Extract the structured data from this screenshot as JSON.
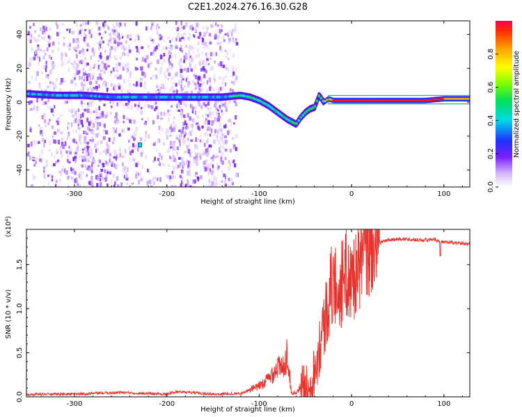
{
  "title": "C2E1.2024.276.16.30.G28",
  "chart_data": [
    {
      "type": "heatmap",
      "xlabel": "Height of straight line (km)",
      "ylabel": "Frequency (Hz)",
      "xlim": [
        -352,
        128
      ],
      "ylim": [
        -50,
        48
      ],
      "xticks": [
        -300,
        -200,
        -100,
        0,
        100
      ],
      "yticks": [
        -40,
        -20,
        0,
        20,
        40
      ],
      "colorbar": {
        "label": "Normalized spectral amplitude",
        "range": [
          0,
          1
        ],
        "ticks": [
          "0.0",
          "0.2",
          "0.4",
          "0.6",
          "0.8"
        ]
      },
      "ridge": {
        "x": [
          -352,
          -320,
          -290,
          -260,
          -240,
          -220,
          -200,
          -180,
          -160,
          -140,
          -120,
          -110,
          -100,
          -90,
          -80,
          -70,
          -60,
          -55,
          -50,
          -45,
          -40,
          -35,
          -30,
          -25,
          -20,
          -10,
          0,
          20,
          50,
          80,
          100,
          128
        ],
        "freq": [
          5,
          4,
          4,
          3,
          3,
          3,
          3,
          3,
          3,
          3,
          4,
          3,
          1,
          -2,
          -6,
          -10,
          -13,
          -9,
          -6,
          -4,
          -3,
          4,
          0,
          2,
          1,
          1,
          1,
          1,
          1,
          1,
          2,
          2
        ]
      }
    },
    {
      "type": "line",
      "xlabel": "Height of straight line (km)",
      "ylabel": "SNR (10 * v/v)",
      "multiplier": "(x10⁴)",
      "xlim": [
        -352,
        128
      ],
      "ylim": [
        0,
        1.9
      ],
      "xticks": [
        -300,
        -200,
        -100,
        0,
        100
      ],
      "yticks": [
        "0.0",
        "0.5",
        "1.0",
        "1.5"
      ],
      "series": [
        {
          "x": [
            -352,
            -300,
            -250,
            -200,
            -190,
            -150,
            -120,
            -110,
            -100,
            -90,
            -80,
            -75,
            -70,
            -65,
            -60,
            -55,
            -50,
            -45,
            -40,
            -35,
            -30,
            -25,
            -20,
            -15,
            -10,
            -5,
            0,
            5,
            10,
            20,
            30,
            40,
            50,
            60,
            70,
            80,
            90,
            95,
            100,
            110,
            120,
            128
          ],
          "y": [
            0.03,
            0.03,
            0.05,
            0.03,
            0.06,
            0.03,
            0.04,
            0.08,
            0.12,
            0.2,
            0.35,
            0.3,
            0.5,
            0.05,
            0.04,
            0.12,
            0.08,
            0.15,
            0.3,
            0.6,
            0.8,
            1.1,
            1.3,
            1.2,
            1.3,
            1.4,
            1.3,
            1.45,
            1.55,
            1.68,
            1.75,
            1.78,
            1.79,
            1.79,
            1.78,
            1.78,
            1.79,
            1.76,
            1.76,
            1.75,
            1.74,
            1.73
          ]
        }
      ]
    }
  ]
}
